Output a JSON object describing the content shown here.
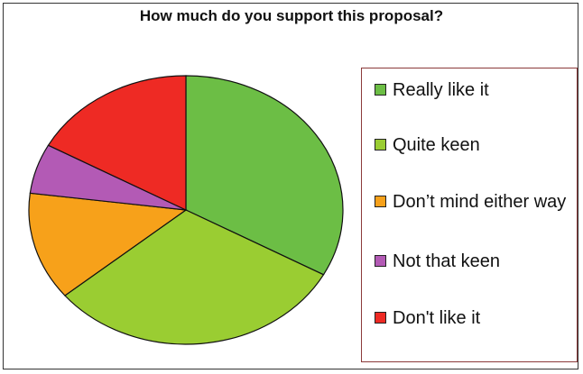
{
  "chart_data": {
    "type": "pie",
    "title": "How much do you support this proposal?",
    "categories": [
      "Really like it",
      "Quite keen",
      "Don’t mind either way",
      "Not that keen",
      "Don't like it"
    ],
    "values": [
      33,
      31,
      13,
      6,
      17
    ],
    "colors": [
      "#6cbe45",
      "#9acd32",
      "#f7a11a",
      "#b35ab5",
      "#ee2a24"
    ],
    "start_angle_deg": 0,
    "direction": "clockwise",
    "legend_position": "right"
  }
}
